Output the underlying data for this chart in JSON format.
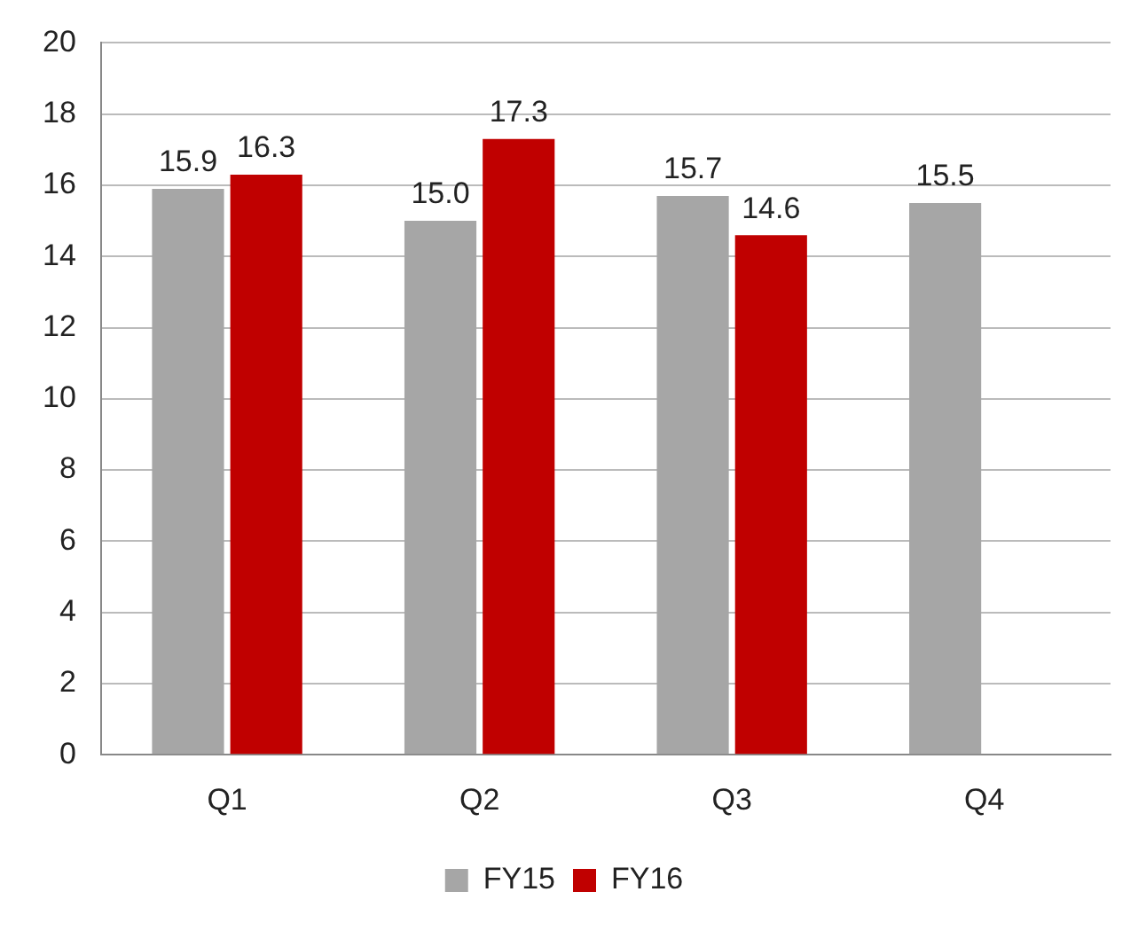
{
  "chart_data": {
    "type": "bar",
    "categories": [
      "Q1",
      "Q2",
      "Q3",
      "Q4"
    ],
    "series": [
      {
        "name": "FY15",
        "color": "#a6a6a6",
        "values": [
          15.9,
          15.0,
          15.7,
          15.5
        ],
        "value_labels": [
          "15.9",
          "15.0",
          "15.7",
          "15.5"
        ]
      },
      {
        "name": "FY16",
        "color": "#c00000",
        "values": [
          16.3,
          17.3,
          14.6,
          null
        ],
        "value_labels": [
          "16.3",
          "17.3",
          "14.6",
          null
        ]
      }
    ],
    "ylim": [
      0,
      20
    ],
    "yticks": [
      0,
      2,
      4,
      6,
      8,
      10,
      12,
      14,
      16,
      18,
      20
    ],
    "grid": "y",
    "legend": "bottom"
  }
}
